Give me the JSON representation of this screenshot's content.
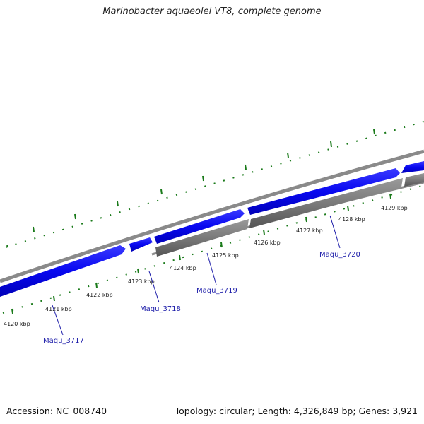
{
  "title": "Marinobacter aquaeolei VT8, complete genome",
  "footer": {
    "accession": "Accession: NC_008740",
    "summary": "Topology: circular; Length: 4,326,849 bp; Genes: 3,921"
  },
  "colors": {
    "forward_gene": "#0a0af0",
    "reverse_gene": "#777777",
    "backbone": "#8a8a8a",
    "tick_green": "#1a7a1a",
    "gene_label": "#1a1aa8"
  },
  "tracks": {
    "kbp_ticks": [
      "4120 kbp",
      "4121 kbp",
      "4122 kbp",
      "4123 kbp",
      "4124 kbp",
      "4125 kbp",
      "4126 kbp",
      "4127 kbp",
      "4128 kbp",
      "4129 kbp"
    ]
  },
  "gene_labels": [
    "Maqu_3717",
    "Maqu_3718",
    "Maqu_3719",
    "Maqu_3720"
  ]
}
